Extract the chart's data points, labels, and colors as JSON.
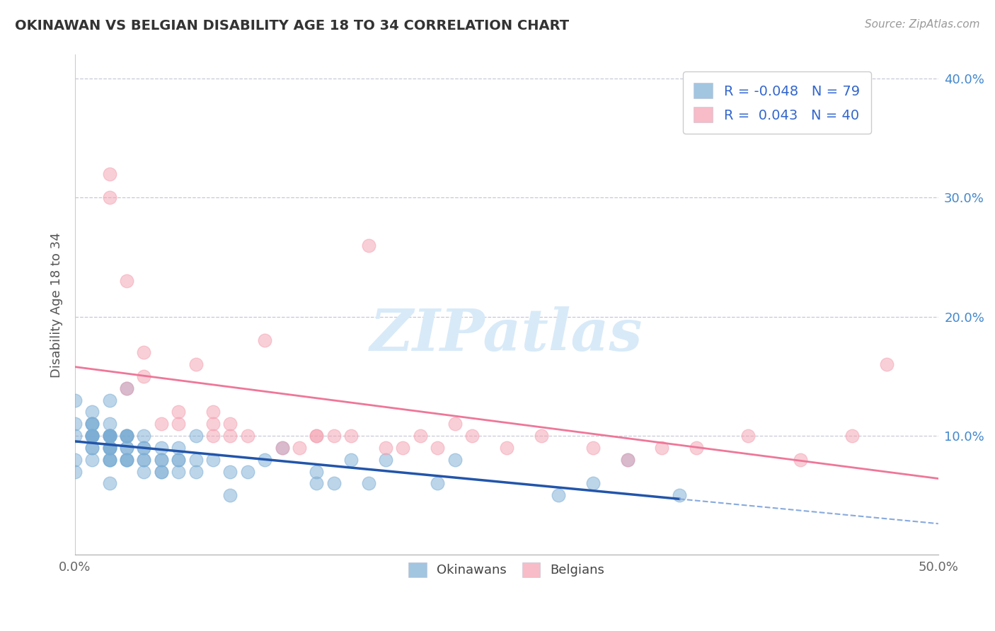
{
  "title": "OKINAWAN VS BELGIAN DISABILITY AGE 18 TO 34 CORRELATION CHART",
  "source": "Source: ZipAtlas.com",
  "ylabel": "Disability Age 18 to 34",
  "xlim": [
    0.0,
    0.5
  ],
  "ylim": [
    0.0,
    0.42
  ],
  "xtick_left": 0.0,
  "xtick_right": 0.5,
  "yticks": [
    0.1,
    0.2,
    0.3,
    0.4
  ],
  "yticklabels": [
    "10.0%",
    "20.0%",
    "30.0%",
    "40.0%"
  ],
  "legend_r_okinawan": "-0.048",
  "legend_n_okinawan": "79",
  "legend_r_belgian": " 0.043",
  "legend_n_belgian": "40",
  "okinawan_color": "#7BADD4",
  "belgian_color": "#F4A0B0",
  "trend_okinawan_solid_color": "#2255AA",
  "trend_okinawan_dashed_color": "#88AADD",
  "trend_belgian_color": "#EE7799",
  "watermark_text": "ZIPatlas",
  "watermark_color": "#D8EAF8",
  "grid_color": "#C8C8D8",
  "okinawan_x": [
    0.0,
    0.0,
    0.0,
    0.0,
    0.0,
    0.01,
    0.01,
    0.01,
    0.01,
    0.01,
    0.01,
    0.01,
    0.01,
    0.01,
    0.01,
    0.01,
    0.01,
    0.02,
    0.02,
    0.02,
    0.02,
    0.02,
    0.02,
    0.02,
    0.02,
    0.02,
    0.02,
    0.02,
    0.02,
    0.02,
    0.02,
    0.02,
    0.02,
    0.03,
    0.03,
    0.03,
    0.03,
    0.03,
    0.03,
    0.03,
    0.03,
    0.03,
    0.03,
    0.04,
    0.04,
    0.04,
    0.04,
    0.04,
    0.04,
    0.05,
    0.05,
    0.05,
    0.05,
    0.05,
    0.06,
    0.06,
    0.06,
    0.06,
    0.07,
    0.07,
    0.07,
    0.08,
    0.09,
    0.09,
    0.1,
    0.11,
    0.12,
    0.14,
    0.14,
    0.15,
    0.16,
    0.17,
    0.18,
    0.21,
    0.22,
    0.28,
    0.3,
    0.32,
    0.35
  ],
  "okinawan_y": [
    0.07,
    0.08,
    0.1,
    0.11,
    0.13,
    0.08,
    0.09,
    0.09,
    0.1,
    0.1,
    0.1,
    0.1,
    0.1,
    0.11,
    0.11,
    0.11,
    0.12,
    0.06,
    0.08,
    0.08,
    0.08,
    0.09,
    0.09,
    0.09,
    0.09,
    0.1,
    0.1,
    0.1,
    0.1,
    0.1,
    0.1,
    0.11,
    0.13,
    0.08,
    0.08,
    0.08,
    0.09,
    0.09,
    0.1,
    0.1,
    0.1,
    0.1,
    0.14,
    0.07,
    0.08,
    0.08,
    0.09,
    0.09,
    0.1,
    0.07,
    0.07,
    0.08,
    0.08,
    0.09,
    0.07,
    0.08,
    0.08,
    0.09,
    0.07,
    0.08,
    0.1,
    0.08,
    0.05,
    0.07,
    0.07,
    0.08,
    0.09,
    0.06,
    0.07,
    0.06,
    0.08,
    0.06,
    0.08,
    0.06,
    0.08,
    0.05,
    0.06,
    0.08,
    0.05
  ],
  "belgian_x": [
    0.02,
    0.02,
    0.03,
    0.03,
    0.04,
    0.04,
    0.05,
    0.06,
    0.06,
    0.07,
    0.08,
    0.08,
    0.08,
    0.09,
    0.09,
    0.1,
    0.11,
    0.12,
    0.13,
    0.14,
    0.14,
    0.15,
    0.16,
    0.17,
    0.18,
    0.19,
    0.2,
    0.21,
    0.22,
    0.23,
    0.25,
    0.27,
    0.3,
    0.32,
    0.34,
    0.36,
    0.39,
    0.42,
    0.45,
    0.47
  ],
  "belgian_y": [
    0.32,
    0.3,
    0.14,
    0.23,
    0.15,
    0.17,
    0.11,
    0.11,
    0.12,
    0.16,
    0.1,
    0.11,
    0.12,
    0.11,
    0.1,
    0.1,
    0.18,
    0.09,
    0.09,
    0.1,
    0.1,
    0.1,
    0.1,
    0.26,
    0.09,
    0.09,
    0.1,
    0.09,
    0.11,
    0.1,
    0.09,
    0.1,
    0.09,
    0.08,
    0.09,
    0.09,
    0.1,
    0.08,
    0.1,
    0.16
  ]
}
